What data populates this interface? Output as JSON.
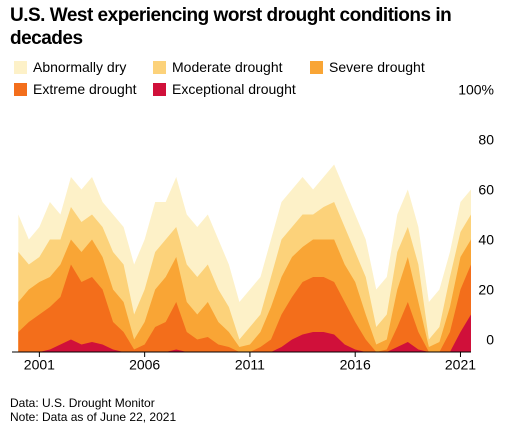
{
  "chart_data": {
    "type": "area",
    "title": "U.S. West experiencing worst drought conditions in decades",
    "notes": [
      "Data: U.S. Drought Monitor",
      "Note: Data as of June 22, 2021"
    ],
    "x": [
      2000,
      2000.5,
      2001,
      2001.5,
      2002,
      2002.5,
      2003,
      2003.5,
      2004,
      2004.5,
      2005,
      2005.5,
      2006,
      2006.5,
      2007,
      2007.5,
      2008,
      2008.5,
      2009,
      2009.5,
      2010,
      2010.5,
      2011,
      2011.5,
      2012,
      2012.5,
      2013,
      2013.5,
      2014,
      2014.5,
      2015,
      2015.5,
      2016,
      2016.5,
      2017,
      2017.5,
      2018,
      2018.5,
      2019,
      2019.5,
      2020,
      2020.5,
      2021,
      2021.5
    ],
    "xlim": [
      1999.7,
      2021.5
    ],
    "xticks": [
      2001,
      2006,
      2011,
      2016,
      2021
    ],
    "ylim": [
      0,
      100
    ],
    "yticks": [
      0,
      20,
      40,
      60,
      80,
      {
        "value": 100,
        "label": "100%"
      }
    ],
    "series": [
      {
        "name": "Abnormally dry",
        "color": "#fdf1c8",
        "values": [
          55,
          45,
          50,
          60,
          55,
          70,
          65,
          70,
          60,
          55,
          50,
          35,
          45,
          60,
          60,
          70,
          55,
          50,
          55,
          45,
          35,
          20,
          25,
          30,
          45,
          60,
          65,
          70,
          65,
          70,
          75,
          65,
          55,
          45,
          25,
          30,
          55,
          65,
          50,
          20,
          25,
          40,
          60,
          65
        ]
      },
      {
        "name": "Moderate drought",
        "color": "#fcd27a",
        "values": [
          40,
          35,
          38,
          45,
          45,
          58,
          52,
          55,
          50,
          40,
          35,
          15,
          25,
          40,
          45,
          50,
          35,
          30,
          35,
          25,
          18,
          5,
          10,
          15,
          30,
          45,
          50,
          55,
          55,
          58,
          60,
          50,
          40,
          30,
          10,
          15,
          40,
          50,
          35,
          5,
          10,
          30,
          48,
          55
        ]
      },
      {
        "name": "Severe drought",
        "color": "#f9a535",
        "values": [
          20,
          25,
          28,
          30,
          35,
          45,
          40,
          45,
          38,
          25,
          20,
          5,
          12,
          25,
          30,
          38,
          20,
          15,
          20,
          12,
          8,
          2,
          3,
          8,
          18,
          30,
          38,
          42,
          45,
          45,
          45,
          35,
          28,
          15,
          3,
          5,
          25,
          38,
          20,
          2,
          4,
          18,
          38,
          45
        ]
      },
      {
        "name": "Extreme drought",
        "color": "#f36e1b",
        "values": [
          8,
          12,
          15,
          18,
          22,
          35,
          28,
          30,
          25,
          12,
          8,
          1,
          3,
          10,
          12,
          20,
          8,
          5,
          6,
          3,
          2,
          0,
          0,
          2,
          5,
          15,
          22,
          28,
          30,
          30,
          28,
          20,
          12,
          5,
          0,
          1,
          10,
          20,
          8,
          0,
          0,
          8,
          25,
          35
        ]
      },
      {
        "name": "Exceptional drought",
        "color": "#d0103a",
        "values": [
          0,
          0,
          0,
          1,
          3,
          5,
          3,
          4,
          3,
          1,
          0,
          0,
          0,
          0,
          0,
          1,
          0,
          0,
          0,
          0,
          0,
          0,
          0,
          0,
          0,
          2,
          5,
          7,
          8,
          8,
          7,
          3,
          1,
          0,
          0,
          0,
          2,
          4,
          1,
          0,
          0,
          0,
          8,
          15
        ]
      }
    ]
  }
}
